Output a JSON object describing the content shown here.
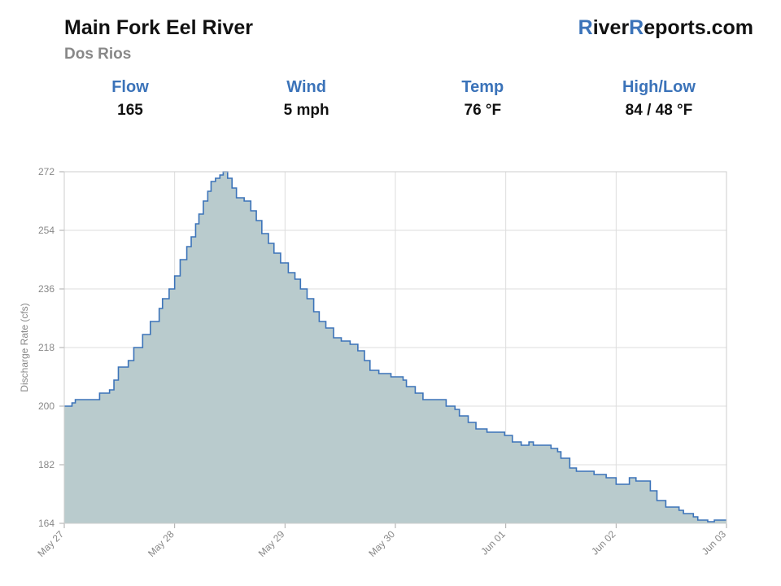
{
  "header": {
    "title": "Main Fork Eel River",
    "subtitle": "Dos Rios",
    "logo": [
      "R",
      "iver",
      "R",
      "eports.com"
    ]
  },
  "stats": [
    {
      "label": "Flow",
      "value": "165"
    },
    {
      "label": "Wind",
      "value": "5 mph"
    },
    {
      "label": "Temp",
      "value": "76 °F"
    },
    {
      "label": "High/Low",
      "value": "84 / 48 °F"
    }
  ],
  "chart_data": {
    "type": "step-area",
    "y_label": "Discharge Rate (cfs)",
    "color": "#3b73b9",
    "fill": "#b9cbcd",
    "grid": true,
    "xlim": [
      0,
      6
    ],
    "ylim": [
      164,
      272
    ],
    "xticks": [
      {
        "value": 0,
        "label": "May 27"
      },
      {
        "value": 1,
        "label": "May 28"
      },
      {
        "value": 2,
        "label": "May 29"
      },
      {
        "value": 3,
        "label": "May 30"
      },
      {
        "value": 4,
        "label": "Jun 01"
      },
      {
        "value": 5,
        "label": "Jun 02"
      },
      {
        "value": 6,
        "label": "Jun 03"
      }
    ],
    "yticks": [
      164,
      182,
      200,
      218,
      236,
      254,
      272
    ],
    "x": [
      0,
      0.07,
      0.1,
      0.18,
      0.29,
      0.32,
      0.41,
      0.45,
      0.49,
      0.58,
      0.63,
      0.71,
      0.78,
      0.86,
      0.89,
      0.95,
      1.0,
      1.05,
      1.11,
      1.15,
      1.19,
      1.22,
      1.26,
      1.3,
      1.33,
      1.37,
      1.41,
      1.44,
      1.48,
      1.52,
      1.56,
      1.63,
      1.69,
      1.74,
      1.79,
      1.85,
      1.9,
      1.96,
      2.03,
      2.09,
      2.14,
      2.2,
      2.26,
      2.31,
      2.37,
      2.44,
      2.51,
      2.59,
      2.66,
      2.72,
      2.77,
      2.85,
      2.96,
      3.07,
      3.1,
      3.18,
      3.25,
      3.4,
      3.46,
      3.54,
      3.58,
      3.66,
      3.73,
      3.83,
      3.99,
      4.06,
      4.14,
      4.21,
      4.25,
      4.41,
      4.47,
      4.5,
      4.58,
      4.64,
      4.8,
      4.91,
      5.0,
      5.09,
      5.12,
      5.18,
      5.24,
      5.31,
      5.37,
      5.45,
      5.57,
      5.61,
      5.7,
      5.74,
      5.83,
      5.89,
      6.0
    ],
    "values": [
      200,
      201,
      202,
      202,
      202,
      204,
      205,
      208,
      212,
      214,
      218,
      222,
      226,
      230,
      233,
      236,
      240,
      245,
      249,
      252,
      256,
      259,
      263,
      266,
      269,
      270,
      271,
      272,
      270,
      267,
      264,
      263,
      260,
      257,
      253,
      250,
      247,
      244,
      241,
      239,
      236,
      233,
      229,
      226,
      224,
      221,
      220,
      219,
      217,
      214,
      211,
      210,
      209,
      208,
      206,
      204,
      202,
      202,
      200,
      199,
      197,
      195,
      193,
      192,
      191,
      189,
      188,
      189,
      188,
      187,
      186,
      184,
      181,
      180,
      179,
      178,
      176,
      176,
      178,
      177,
      177,
      174,
      171,
      169,
      168,
      167,
      166,
      165,
      164.5,
      165,
      165
    ]
  }
}
